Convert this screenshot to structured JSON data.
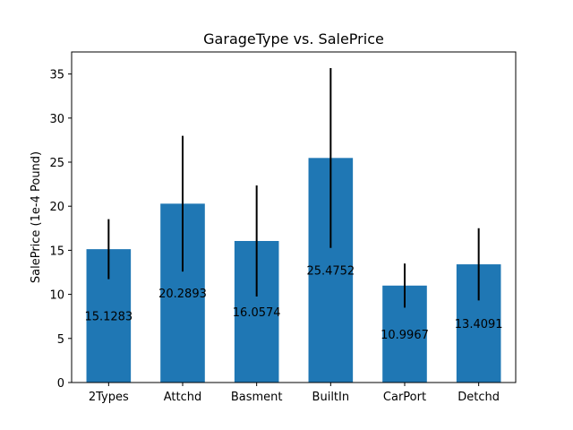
{
  "chart_data": {
    "type": "bar",
    "title": "GarageType vs. SalePrice",
    "xlabel": "",
    "ylabel": "SalePrice (1e-4 Pound)",
    "categories": [
      "2Types",
      "Attchd",
      "Basment",
      "BuiltIn",
      "CarPort",
      "Detchd"
    ],
    "values": [
      15.1283,
      20.2893,
      16.0574,
      25.4752,
      10.9967,
      13.4091
    ],
    "value_labels": [
      "15.1283",
      "20.2893",
      "16.0574",
      "25.4752",
      "10.9967",
      "13.4091"
    ],
    "error": [
      3.4,
      7.7,
      6.3,
      10.2,
      2.5,
      4.1
    ],
    "ylim": [
      0,
      37.5
    ],
    "yticks": [
      0,
      5,
      10,
      15,
      20,
      25,
      30,
      35
    ],
    "grid": false,
    "bar_color": "#1f77b4",
    "error_color": "#000000"
  }
}
